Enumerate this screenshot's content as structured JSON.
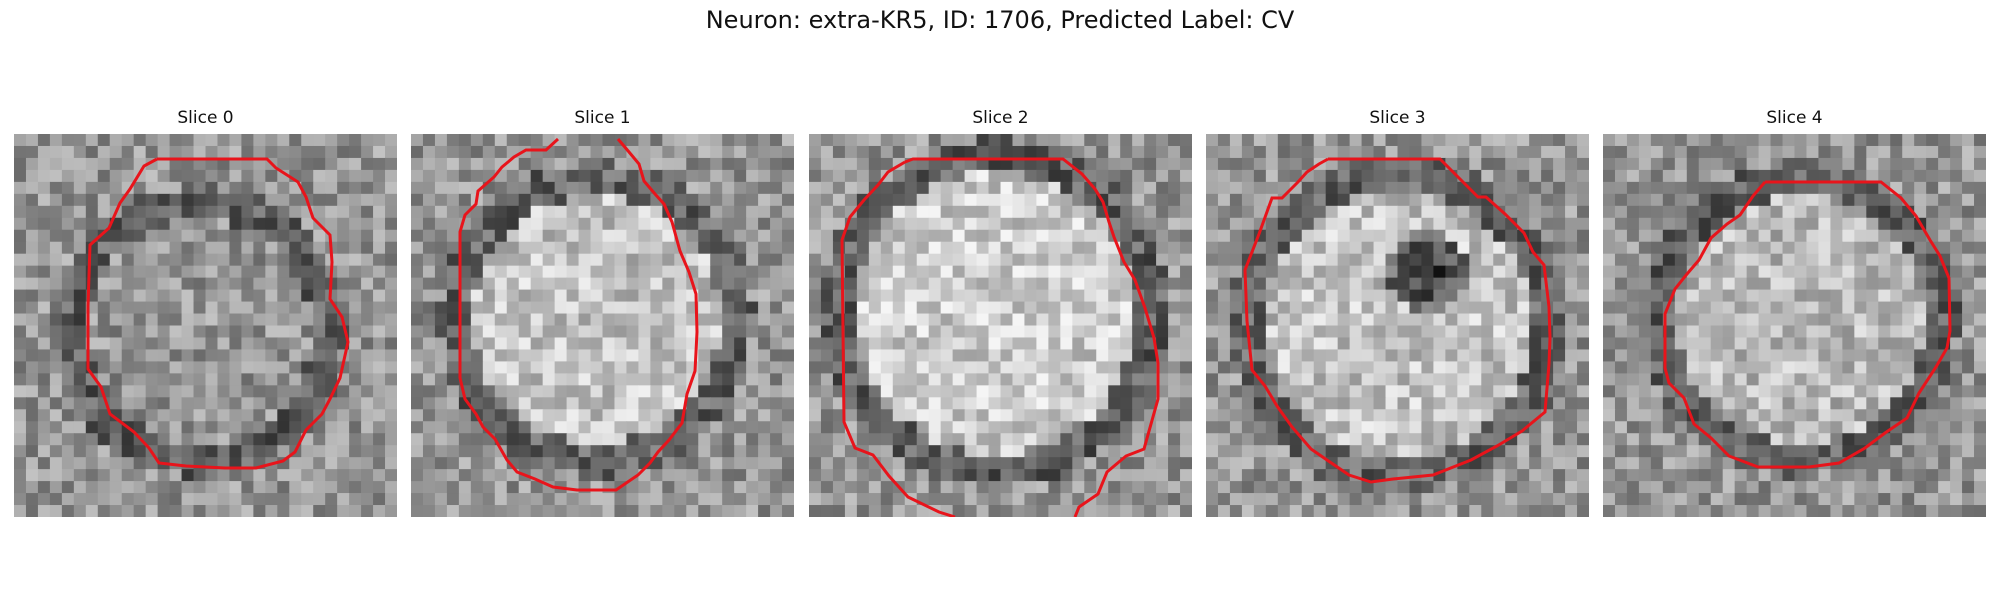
{
  "figure": {
    "title": "Neuron: extra-KR5, ID: 1706, Predicted Label: CV"
  },
  "slices": [
    {
      "title": "Slice 0",
      "image": "grayscale-em-crop",
      "contour_color": "#e8141b"
    },
    {
      "title": "Slice 1",
      "image": "grayscale-em-crop",
      "contour_color": "#e8141b"
    },
    {
      "title": "Slice 2",
      "image": "grayscale-em-crop",
      "contour_color": "#e8141b"
    },
    {
      "title": "Slice 3",
      "image": "grayscale-em-crop",
      "contour_color": "#e8141b"
    },
    {
      "title": "Slice 4",
      "image": "grayscale-em-crop",
      "contour_color": "#e8141b"
    }
  ]
}
